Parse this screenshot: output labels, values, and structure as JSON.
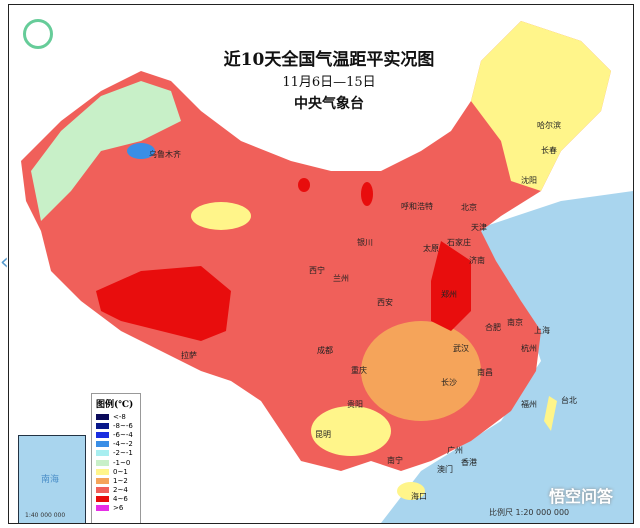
{
  "header": {
    "title": "近10天全国气温距平实况图",
    "date_range": "11月6日—15日",
    "issuer": "中央气象台"
  },
  "legend": {
    "title": "图例(℃)",
    "items": [
      {
        "label": "<-8",
        "color": "#0a0a5a"
      },
      {
        "label": "-8~-6",
        "color": "#08188a"
      },
      {
        "label": "-6~-4",
        "color": "#1a2ee0"
      },
      {
        "label": "-4~-2",
        "color": "#3a8ee6"
      },
      {
        "label": "-2~-1",
        "color": "#a8eef0"
      },
      {
        "label": "-1~0",
        "color": "#c8f0c8"
      },
      {
        "label": "0~1",
        "color": "#fff58a"
      },
      {
        "label": "1~2",
        "color": "#f5a45a"
      },
      {
        "label": "2~4",
        "color": "#f0605a"
      },
      {
        "label": "4~6",
        "color": "#e80d0d"
      },
      {
        "label": ">6",
        "color": "#e62ee6"
      }
    ]
  },
  "cities": [
    "乌鲁木齐",
    "哈尔滨",
    "长春",
    "沈阳",
    "呼和浩特",
    "北京",
    "天津",
    "银川",
    "石家庄",
    "太原",
    "济南",
    "西宁",
    "兰州",
    "西安",
    "郑州",
    "合肥",
    "南京",
    "上海",
    "拉萨",
    "成都",
    "武汉",
    "杭州",
    "重庆",
    "长沙",
    "南昌",
    "福州",
    "贵阳",
    "台北",
    "昆明",
    "南宁",
    "广州",
    "香港",
    "澳门",
    "海口"
  ],
  "inset": {
    "label": "南海",
    "scale": "1:40 000 000"
  },
  "scale": "比例尺 1:20 000 000",
  "watermark": "悟空问答",
  "colors": {
    "sea": "#a9d5ee",
    "land_outside": "#f2efe4"
  }
}
